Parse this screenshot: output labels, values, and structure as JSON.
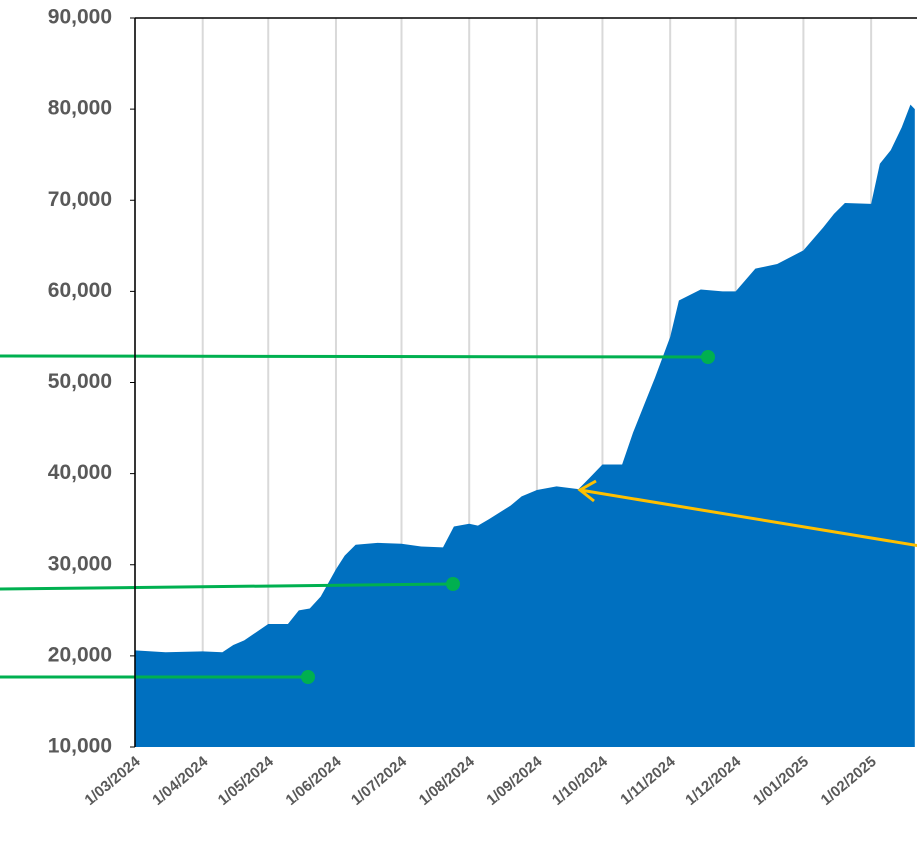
{
  "chart_data": {
    "type": "area",
    "color": "#0070c0",
    "grid": true,
    "x": [
      "2024-03-01",
      "2024-03-15",
      "2024-04-01",
      "2024-04-10",
      "2024-04-15",
      "2024-04-20",
      "2024-05-01",
      "2024-05-10",
      "2024-05-15",
      "2024-05-20",
      "2024-05-25",
      "2024-06-01",
      "2024-06-05",
      "2024-06-10",
      "2024-06-20",
      "2024-07-01",
      "2024-07-10",
      "2024-07-20",
      "2024-07-25",
      "2024-08-01",
      "2024-08-05",
      "2024-08-10",
      "2024-08-20",
      "2024-08-25",
      "2024-09-01",
      "2024-09-10",
      "2024-09-20",
      "2024-09-25",
      "2024-10-01",
      "2024-10-10",
      "2024-10-15",
      "2024-10-20",
      "2024-10-25",
      "2024-11-01",
      "2024-11-05",
      "2024-11-15",
      "2024-11-25",
      "2024-12-01",
      "2024-12-10",
      "2024-12-20",
      "2025-01-01",
      "2025-01-10",
      "2025-01-15",
      "2025-01-20",
      "2025-02-01",
      "2025-02-05",
      "2025-02-10",
      "2025-02-15",
      "2025-02-19",
      "2025-02-21"
    ],
    "values": [
      20600,
      20400,
      20500,
      20400,
      21200,
      21700,
      23500,
      23500,
      25000,
      25200,
      26500,
      29500,
      31000,
      32200,
      32400,
      32300,
      32000,
      31900,
      34200,
      34500,
      34300,
      35000,
      36500,
      37500,
      38200,
      38600,
      38300,
      39500,
      41000,
      41000,
      44500,
      47500,
      50500,
      55000,
      59000,
      60200,
      60000,
      60000,
      62500,
      63000,
      64500,
      67000,
      68500,
      69700,
      69600,
      74000,
      75500,
      78000,
      80500,
      80000
    ],
    "xlim": [
      "2024-03-01",
      "2025-02-22"
    ],
    "xticks": [
      {
        "value": "2024-03-01",
        "label": "1/03/2024"
      },
      {
        "value": "2024-04-01",
        "label": "1/04/2024"
      },
      {
        "value": "2024-05-01",
        "label": "1/05/2024"
      },
      {
        "value": "2024-06-01",
        "label": "1/06/2024"
      },
      {
        "value": "2024-07-01",
        "label": "1/07/2024"
      },
      {
        "value": "2024-08-01",
        "label": "1/08/2024"
      },
      {
        "value": "2024-09-01",
        "label": "1/09/2024"
      },
      {
        "value": "2024-10-01",
        "label": "1/10/2024"
      },
      {
        "value": "2024-11-01",
        "label": "1/11/2024"
      },
      {
        "value": "2024-12-01",
        "label": "1/12/2024"
      },
      {
        "value": "2025-01-01",
        "label": "1/01/2025"
      },
      {
        "value": "2025-02-01",
        "label": "1/02/2025"
      }
    ],
    "ylim": [
      10000,
      90000
    ],
    "yticks": [
      {
        "value": 10000,
        "label": "10,000"
      },
      {
        "value": 20000,
        "label": "20,000"
      },
      {
        "value": 30000,
        "label": "30,000"
      },
      {
        "value": 40000,
        "label": "40,000"
      },
      {
        "value": 50000,
        "label": "50,000"
      },
      {
        "value": 60000,
        "label": "60,000"
      },
      {
        "value": 70000,
        "label": "70,000"
      },
      {
        "value": 80000,
        "label": "80,000"
      },
      {
        "value": 90000,
        "label": "90,000"
      }
    ]
  }
}
